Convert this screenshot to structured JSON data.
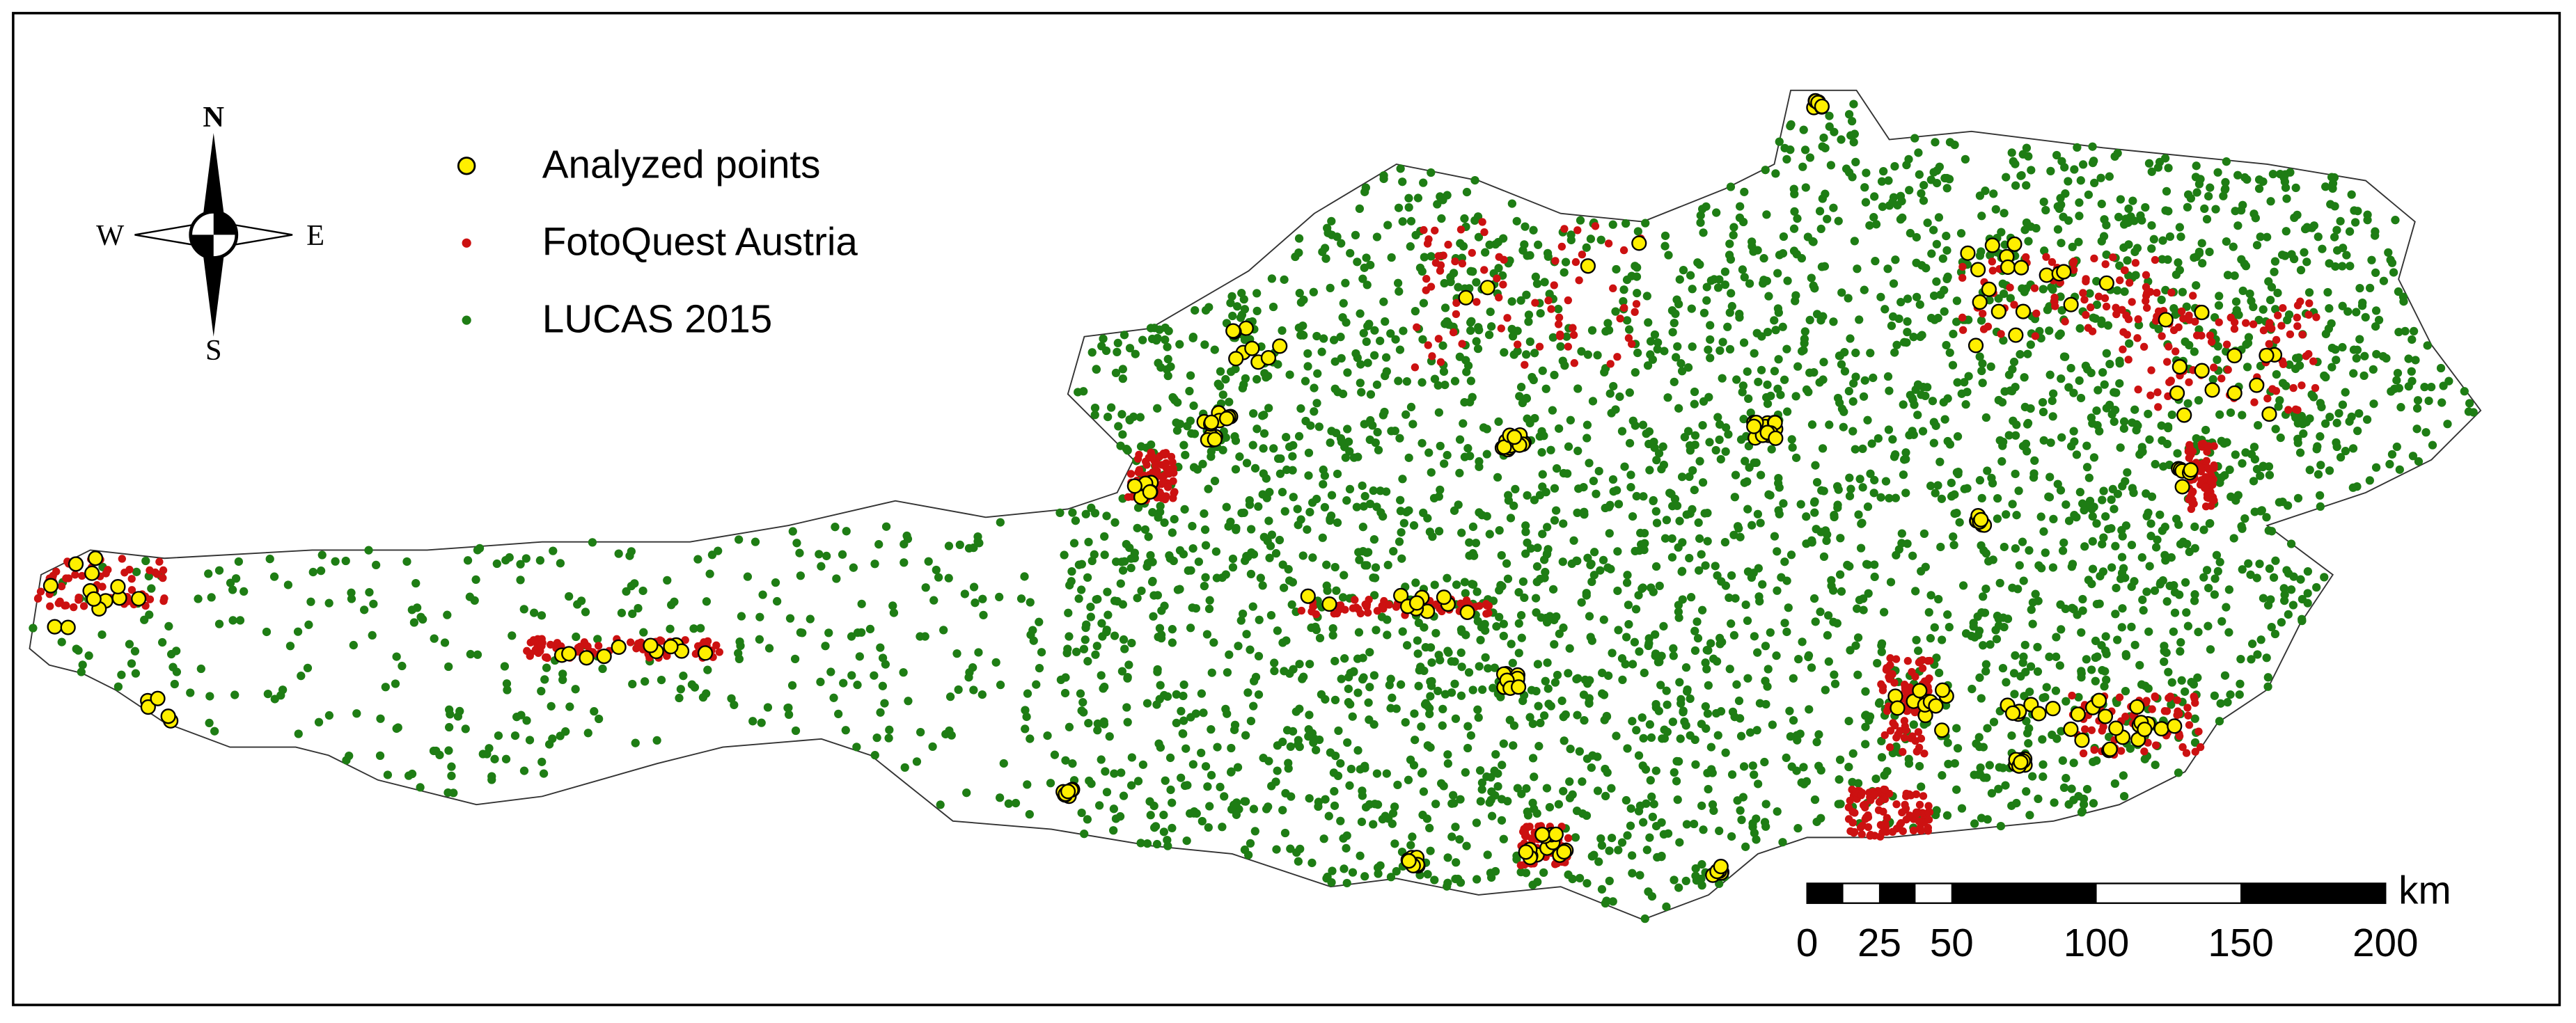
{
  "map": {
    "compass": {
      "north": "N",
      "east": "E",
      "south": "S",
      "west": "W"
    },
    "legend": [
      {
        "label": "Analyzed points",
        "color": "#ffef00"
      },
      {
        "label": "FotoQuest Austria",
        "color": "#cc1111"
      },
      {
        "label": "LUCAS 2015",
        "color": "#1e7d14"
      }
    ],
    "scale_bar": {
      "unit": "km",
      "ticks": [
        0,
        25,
        50,
        100,
        150,
        200
      ]
    }
  }
}
